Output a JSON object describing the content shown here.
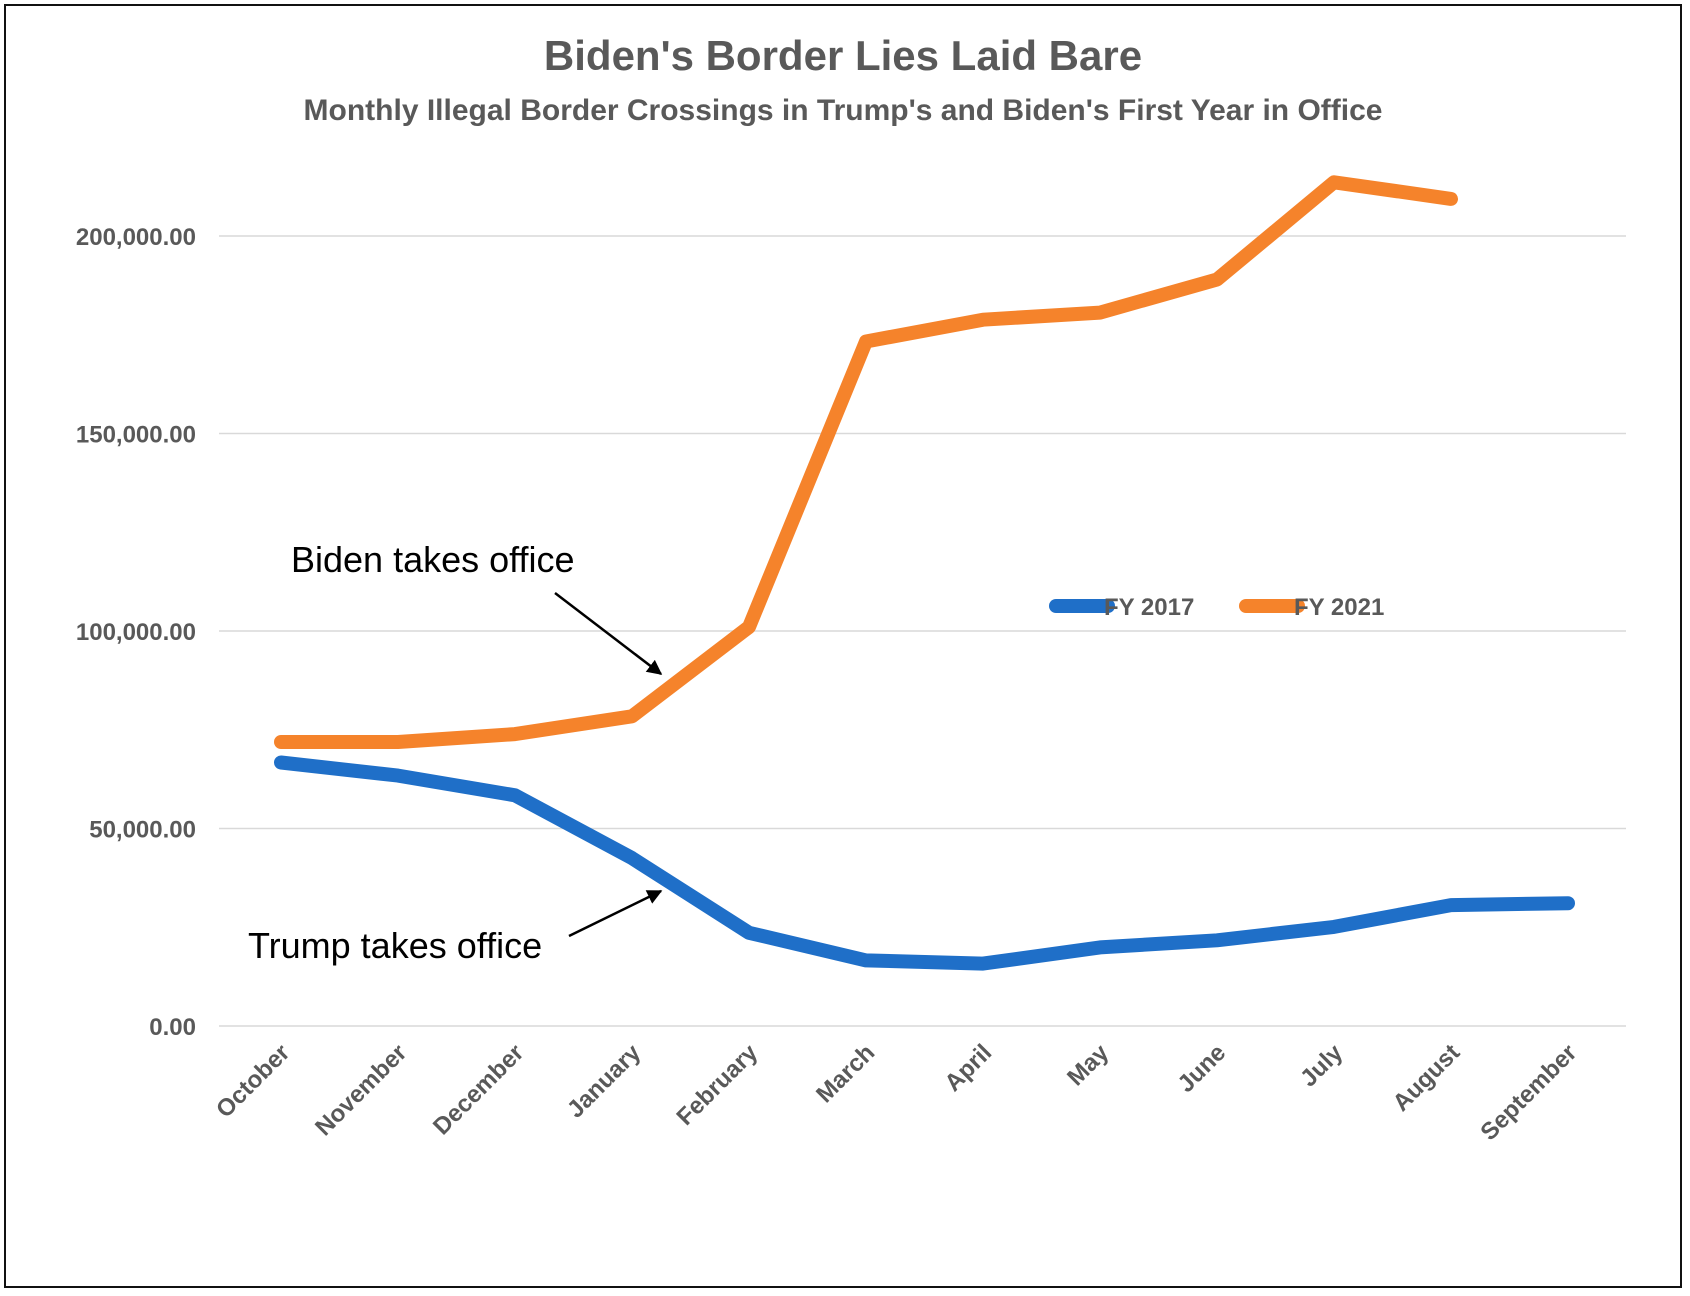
{
  "chart_data": {
    "type": "line",
    "title": "Biden's Border Lies Laid Bare",
    "subtitle": "Monthly Illegal Border Crossings in Trump's and Biden's First  Year in Office",
    "xlabel": "",
    "ylabel": "",
    "categories": [
      "October",
      "November",
      "December",
      "January",
      "February",
      "March",
      "April",
      "May",
      "June",
      "July",
      "August",
      "September"
    ],
    "series": [
      {
        "name": "FY 2017",
        "color": "#1f6fc8",
        "values": [
          66700,
          63400,
          58400,
          42500,
          23600,
          16600,
          15800,
          19900,
          21700,
          25100,
          30600,
          31100
        ]
      },
      {
        "name": "FY 2021",
        "color": "#f5832b",
        "values": [
          71900,
          71900,
          73900,
          78400,
          101000,
          173300,
          178800,
          180600,
          189000,
          213600,
          209400,
          null
        ]
      }
    ],
    "ylim": [
      0,
      200000
    ],
    "yticks": [
      0,
      50000,
      100000,
      150000,
      200000
    ],
    "ytick_labels": [
      "0.00",
      "50,000.00",
      "100,000.00",
      "150,000.00",
      "200,000.00"
    ],
    "grid": true,
    "legend": "center-right",
    "annotations": [
      {
        "text": "Biden takes office",
        "series": "FY 2021",
        "month": "January"
      },
      {
        "text": "Trump takes office",
        "series": "FY 2017",
        "month": "January"
      }
    ]
  }
}
